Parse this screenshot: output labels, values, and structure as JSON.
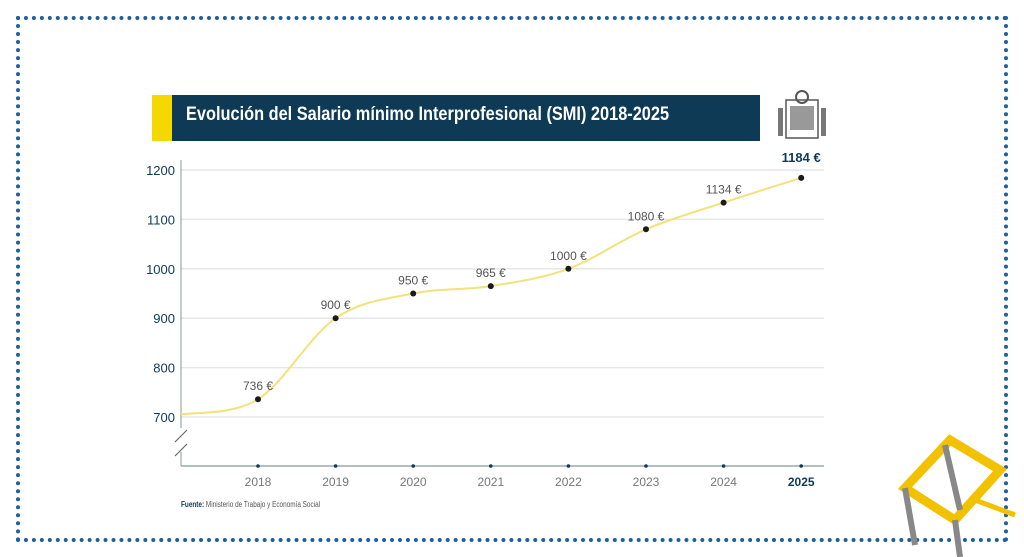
{
  "chart_data": {
    "type": "line",
    "title": "Evolución del Salario mínimo Interprofesional (SMI) 2018-2025",
    "categories": [
      "2018",
      "2019",
      "2020",
      "2021",
      "2022",
      "2023",
      "2024",
      "2025"
    ],
    "values": [
      736,
      900,
      950,
      965,
      1000,
      1080,
      1134,
      1184
    ],
    "data_labels": [
      "736 €",
      "900 €",
      "950 €",
      "965 €",
      "1000 €",
      "1080 €",
      "1134 €",
      "1184 €"
    ],
    "yticks": [
      700,
      800,
      900,
      1000,
      1100,
      1200
    ],
    "ylim": [
      700,
      1200
    ],
    "axis_break": true,
    "grid": true,
    "line_color": "#f3e27a",
    "marker_color": "#1a1a1a",
    "title_bar_color": "#0e3a55",
    "accent_color": "#f5d800"
  },
  "source": {
    "label": "Fuente:",
    "text": "Ministerio de Trabajo y Economía Social"
  },
  "icons": [
    "spain-coat-of-arms-icon",
    "cube-logo-icon"
  ]
}
